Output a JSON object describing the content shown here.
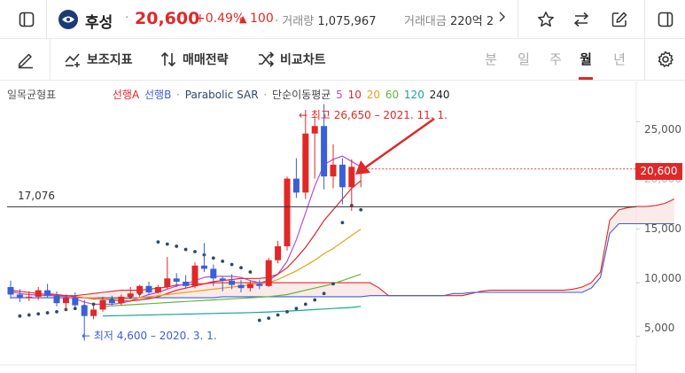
{
  "stock": {
    "name": "후성",
    "price": "20,600",
    "change_rate": "+0.49%",
    "change_arrow": "▲",
    "change_amount": "100",
    "volume_label": "거래량",
    "volume": "1,075,967",
    "amount_label": "거래대금",
    "amount": "220억 2",
    "separator": "·"
  },
  "toolbar": {
    "indicator_label": "보조지표",
    "strategy_label": "매매전략",
    "compare_label": "비교차트",
    "periods": [
      "분",
      "일",
      "주",
      "월",
      "년"
    ],
    "active_period": "월"
  },
  "legend": {
    "ichimoku": "일목균형표",
    "span_a": "선행A",
    "span_b": "선행B",
    "sar": "Parabolic SAR",
    "dot": "·",
    "ma_label": "단순이동평균",
    "ma_periods": [
      "5",
      "10",
      "20",
      "60",
      "120",
      "240"
    ]
  },
  "chart_labels": {
    "current_price_badge": "20,600",
    "reference_line_value": "17,076",
    "high_annotation": "← 최고 26,650 – 2021. 11. 1.",
    "low_annotation": "← 최저 4,600 – 2020. 3. 1.",
    "y_ticks": [
      "25,000",
      "20,000",
      "15,000",
      "10,000",
      "5,000"
    ]
  },
  "colors": {
    "up": "#e02828",
    "down": "#3b5fd9",
    "span_a": "#e02828",
    "span_b": "#3b5fd9",
    "sar": "#2d4a6b",
    "ma5": "#b44fd6",
    "ma10": "#e02828",
    "ma20": "#e8a21a",
    "ma60": "#63b63c",
    "ma120": "#1aa39a",
    "ma240": "#222222"
  },
  "chart_data": {
    "type": "candlestick",
    "y_range": [
      2500,
      28500
    ],
    "y_ticks": [
      5000,
      10000,
      15000,
      20000,
      25000
    ],
    "reference_line": 17076,
    "candles": [
      [
        9600,
        10200,
        8500,
        8900
      ],
      [
        8900,
        9400,
        8200,
        8600
      ],
      [
        8600,
        9200,
        8300,
        8700
      ],
      [
        8700,
        9600,
        8400,
        9300
      ],
      [
        9300,
        9900,
        8600,
        8800
      ],
      [
        8800,
        9200,
        7800,
        8100
      ],
      [
        8100,
        8900,
        7400,
        8600
      ],
      [
        8600,
        9100,
        7700,
        7900
      ],
      [
        7900,
        8400,
        4600,
        6900
      ],
      [
        6900,
        7900,
        6600,
        7500
      ],
      [
        7500,
        8700,
        7300,
        8400
      ],
      [
        8400,
        8800,
        7900,
        8100
      ],
      [
        8100,
        8900,
        7900,
        8700
      ],
      [
        8700,
        9600,
        8500,
        9000
      ],
      [
        9000,
        9800,
        8700,
        9700
      ],
      [
        9700,
        10100,
        8900,
        9100
      ],
      [
        9100,
        9800,
        9000,
        9600
      ],
      [
        9600,
        12400,
        9400,
        10400
      ],
      [
        10400,
        10900,
        9600,
        10100
      ],
      [
        10100,
        10700,
        9500,
        9700
      ],
      [
        9700,
        11900,
        9500,
        11600
      ],
      [
        11600,
        13700,
        11000,
        11300
      ],
      [
        11300,
        11700,
        9700,
        10400
      ],
      [
        10400,
        10600,
        9200,
        10200
      ],
      [
        10200,
        10800,
        9400,
        9800
      ],
      [
        9800,
        10300,
        9100,
        9500
      ],
      [
        9500,
        10200,
        9200,
        9900
      ],
      [
        9900,
        10300,
        9400,
        9700
      ],
      [
        9700,
        12300,
        9600,
        12100
      ],
      [
        12100,
        13900,
        11800,
        13400
      ],
      [
        13400,
        19900,
        13000,
        19700
      ],
      [
        19700,
        21600,
        17900,
        18400
      ],
      [
        18400,
        26100,
        17800,
        23900
      ],
      [
        23900,
        25400,
        19700,
        24600
      ],
      [
        24600,
        26650,
        18700,
        19900
      ],
      [
        19900,
        22900,
        18800,
        21000
      ],
      [
        21000,
        21600,
        17300,
        18900
      ],
      [
        18900,
        21500,
        16700,
        20800
      ],
      [
        20500,
        21200,
        18900,
        20600
      ]
    ],
    "ma": {
      "ma5": [
        9200,
        9000,
        8900,
        8850,
        8800,
        8800,
        8700,
        8500,
        8200,
        8000,
        8000,
        8000,
        8100,
        8300,
        8600,
        8900,
        9100,
        9400,
        9700,
        9900,
        10200,
        10500,
        10600,
        10600,
        10600,
        10500,
        10200,
        10000,
        10200,
        10800,
        12000,
        14000,
        16500,
        19000,
        21000,
        21500,
        21800,
        21300,
        20800
      ],
      "ma10": [
        null,
        null,
        null,
        null,
        9000,
        8900,
        8800,
        8700,
        8600,
        8500,
        8500,
        8400,
        8300,
        8300,
        8400,
        8500,
        8700,
        9000,
        9300,
        9500,
        9700,
        9900,
        10100,
        10200,
        10300,
        10400,
        10400,
        10400,
        10500,
        10800,
        11400,
        12300,
        13300,
        14500,
        15800,
        16800,
        17800,
        18800,
        19500
      ],
      "ma20": [
        null,
        null,
        null,
        null,
        null,
        null,
        null,
        8600,
        8600,
        8600,
        8500,
        8500,
        8500,
        8500,
        8600,
        8700,
        8800,
        8900,
        9000,
        9100,
        9200,
        9300,
        9400,
        9500,
        9600,
        9700,
        9800,
        9900,
        10000,
        10300,
        10700,
        11100,
        11600,
        12100,
        12700,
        13200,
        13800,
        14400,
        15000
      ],
      "ma60": [
        null,
        null,
        null,
        null,
        null,
        null,
        null,
        null,
        null,
        null,
        7800,
        7850,
        7900,
        7950,
        8000,
        8050,
        8100,
        8150,
        8200,
        8250,
        8300,
        8350,
        8400,
        8450,
        8500,
        8550,
        8600,
        8650,
        8700,
        8800,
        8900,
        9100,
        9300,
        9500,
        9700,
        9900,
        10200,
        10500,
        10800
      ],
      "ma120": [
        null,
        null,
        null,
        null,
        null,
        null,
        null,
        null,
        null,
        null,
        6900,
        6920,
        6940,
        6960,
        6980,
        7000,
        7020,
        7040,
        7060,
        7080,
        7100,
        7120,
        7140,
        7160,
        7180,
        7200,
        7220,
        7250,
        7280,
        7320,
        7360,
        7400,
        7450,
        7500,
        7550,
        7600,
        7650,
        7700,
        7800
      ]
    },
    "ichimoku": {
      "span_a": [
        9300,
        9200,
        9100,
        9000,
        8900,
        8800,
        8800,
        8800,
        8900,
        9000,
        9100,
        9200,
        9300,
        9300,
        9300,
        9400,
        9500,
        9600,
        9800,
        9800,
        9900,
        9900,
        10000,
        10000,
        10000,
        10000,
        10000,
        10000,
        10000,
        10000,
        10000,
        10000,
        10000,
        10000,
        10000,
        10000,
        10000,
        10000,
        10000,
        10000,
        9500,
        8800,
        8800,
        8800,
        8800,
        8800,
        8800,
        8800,
        8800,
        8800,
        9000,
        9200,
        9300,
        9300,
        9300,
        9300,
        9300,
        9300,
        9300,
        9300,
        9300,
        9400,
        9600,
        10000,
        11000,
        15800,
        16800,
        17000,
        17100,
        17100,
        17200,
        17400,
        17800
      ],
      "span_b": [
        8600,
        8600,
        8600,
        8600,
        8600,
        8600,
        8600,
        8600,
        8600,
        8600,
        8600,
        8600,
        8600,
        8600,
        8600,
        8600,
        8600,
        8600,
        8600,
        8600,
        8600,
        8600,
        8600,
        8700,
        8700,
        8700,
        8700,
        8700,
        8700,
        8700,
        8700,
        8700,
        8700,
        8700,
        8700,
        8700,
        8700,
        8700,
        8700,
        8800,
        8800,
        8800,
        8800,
        8800,
        8800,
        8800,
        8800,
        8800,
        9000,
        9000,
        9100,
        9100,
        9100,
        9100,
        9100,
        9100,
        9100,
        9100,
        9100,
        9100,
        9100,
        9100,
        9100,
        9500,
        10500,
        14600,
        15500,
        15500,
        15500,
        15500,
        15500,
        15500,
        15500
      ]
    },
    "sar": [
      null,
      6900,
      7000,
      7100,
      7200,
      7300,
      7500,
      7600,
      7800,
      8000,
      8200,
      8400,
      8500,
      8700,
      9000,
      9400,
      13800,
      13600,
      13400,
      13100,
      12900,
      12600,
      12300,
      12000,
      11700,
      11400,
      11000,
      6500,
      6700,
      7000,
      7300,
      7600,
      8000,
      8400,
      9000,
      9900,
      15600,
      17200,
      16800
    ]
  }
}
